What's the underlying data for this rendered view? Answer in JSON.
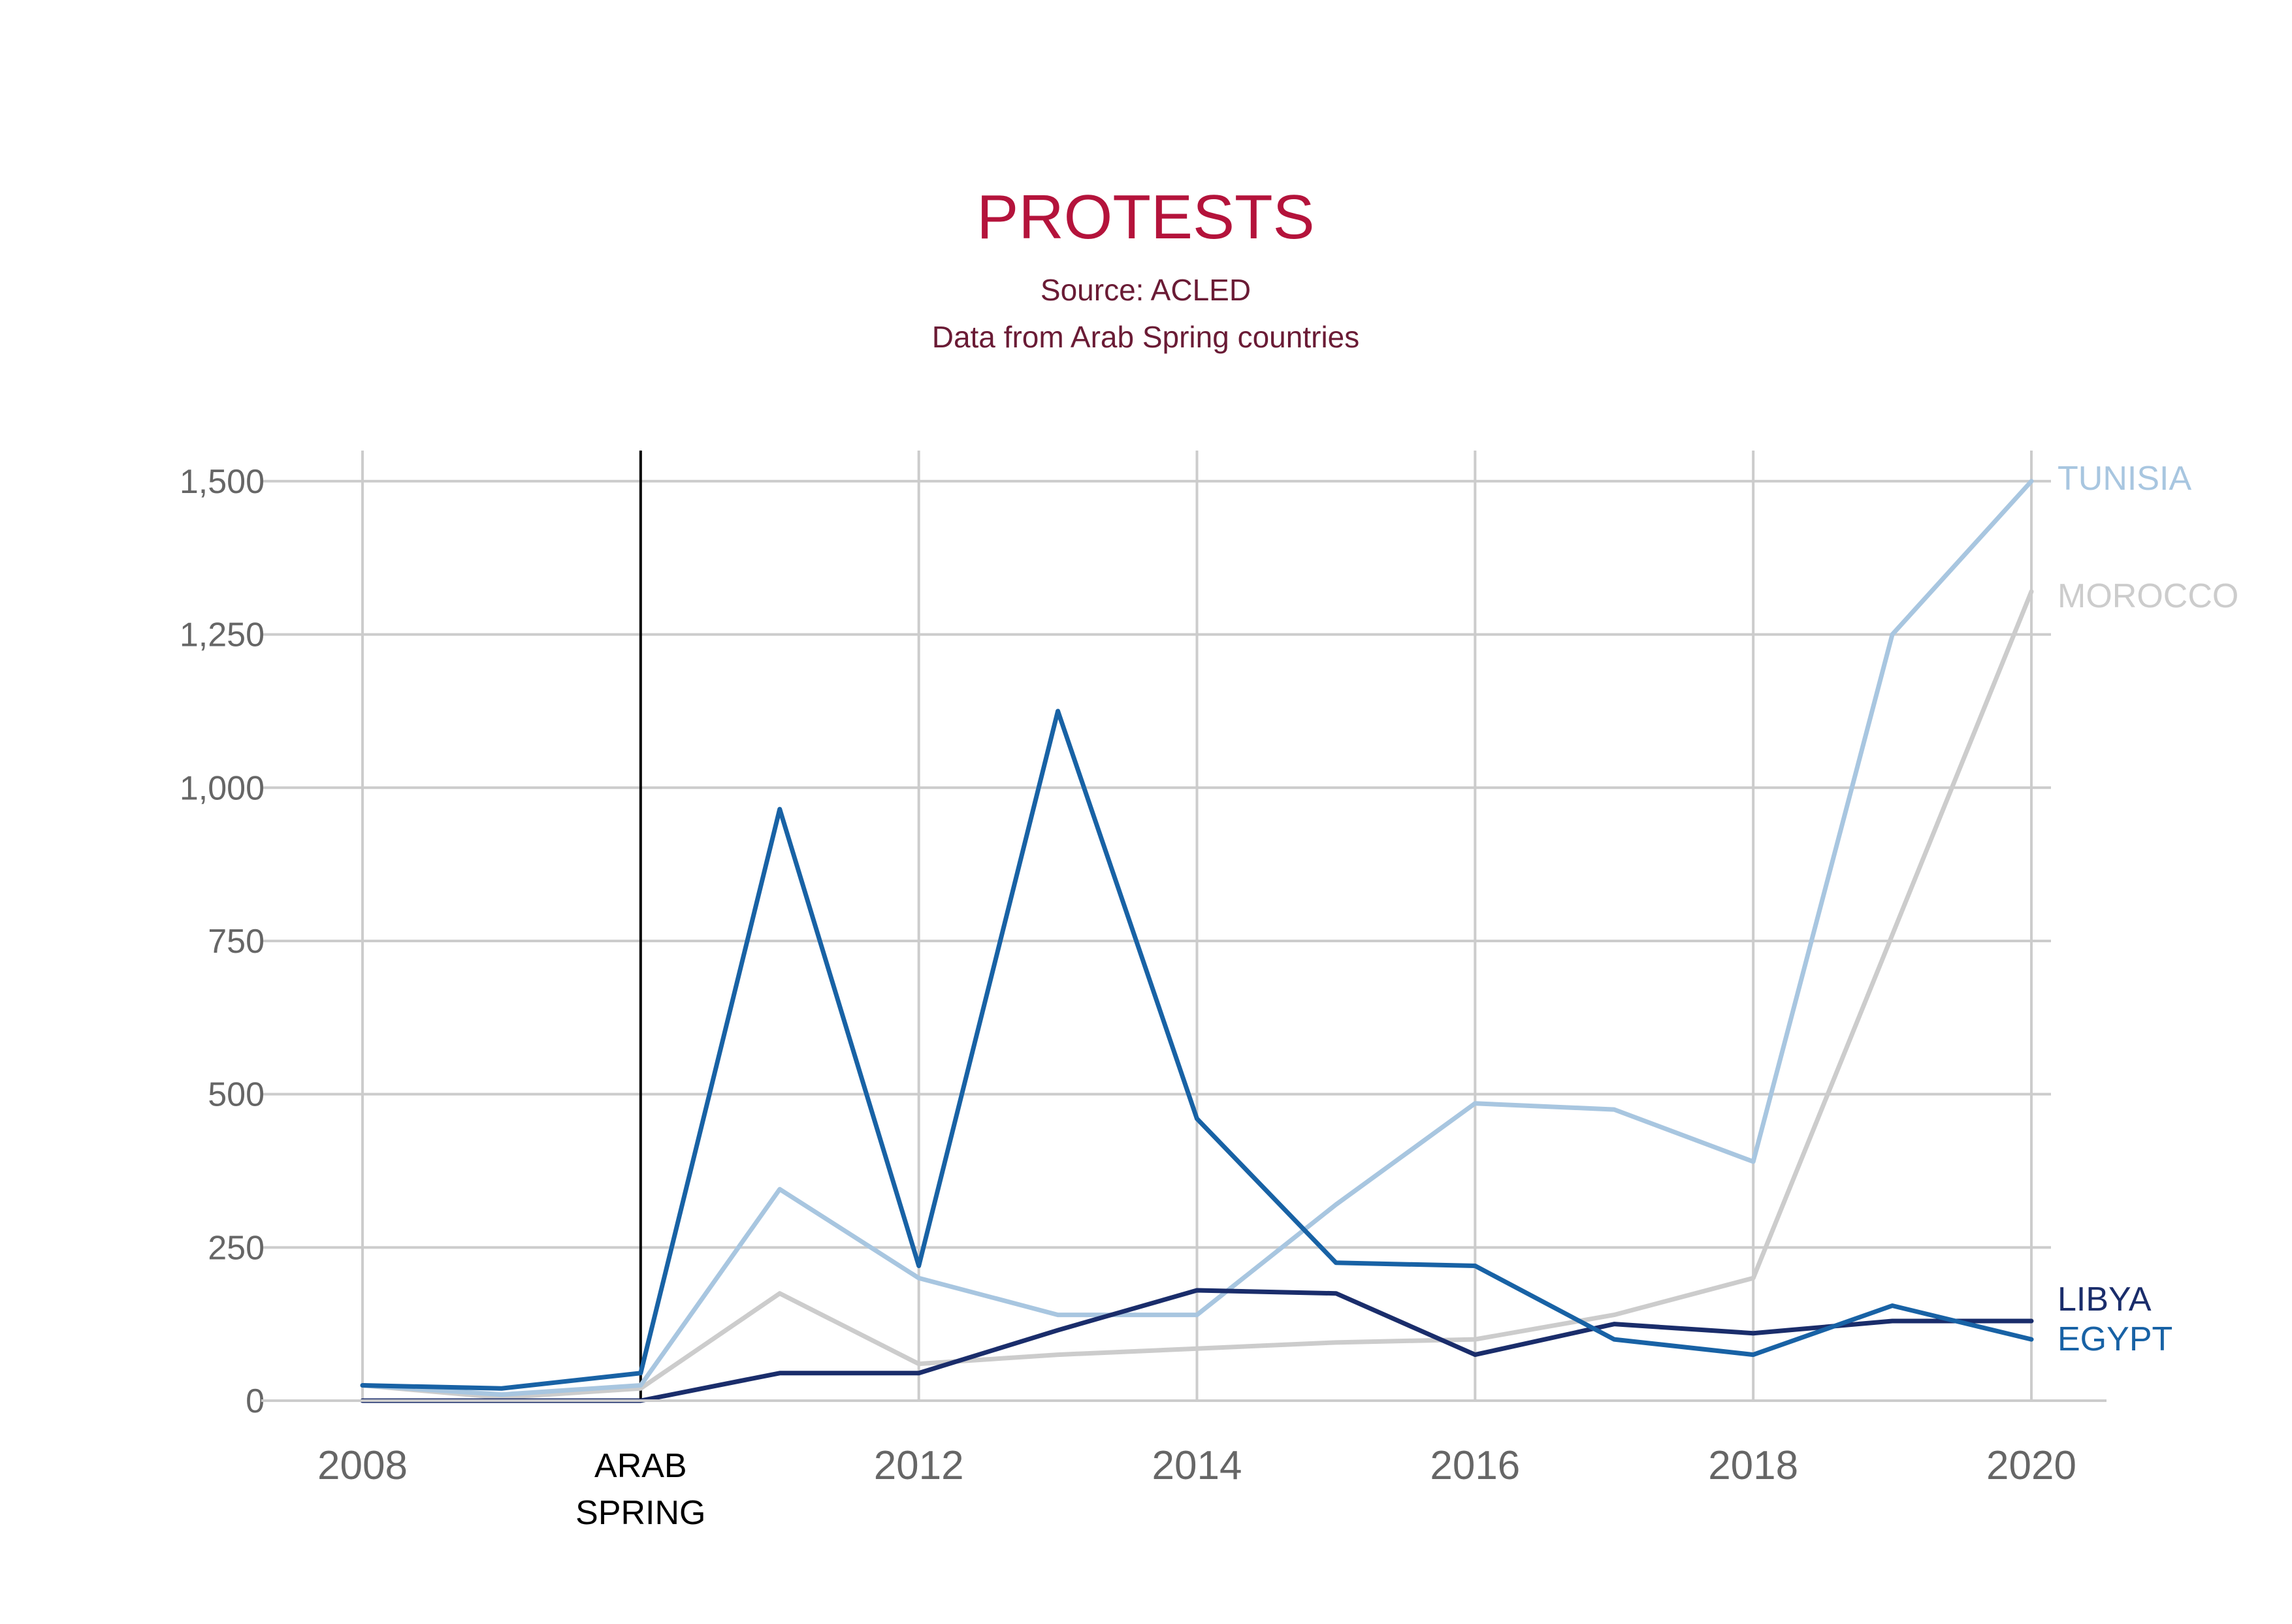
{
  "chart_data": {
    "type": "line",
    "title": "PROTESTS",
    "subtitle_lines": [
      "Source: ACLED",
      "Data from Arab Spring countries"
    ],
    "xlim": [
      2008,
      2020
    ],
    "ylim": [
      0,
      1550
    ],
    "yticks": [
      0,
      250,
      500,
      750,
      1000,
      1250,
      1500
    ],
    "ytick_labels": [
      "0",
      "250",
      "500",
      "750",
      "1,000",
      "1,250",
      "1,500"
    ],
    "xticks": [
      2008,
      2012,
      2014,
      2016,
      2018,
      2020
    ],
    "xtick_labels": [
      "2008",
      "2012",
      "2014",
      "2016",
      "2018",
      "2020"
    ],
    "grid": true,
    "x": [
      2008,
      2009,
      2010,
      2011,
      2012,
      2013,
      2014,
      2015,
      2016,
      2017,
      2018,
      2019,
      2020
    ],
    "annotations": [
      {
        "x": 2010,
        "lines": [
          "ARAB",
          "SPRING"
        ],
        "color": "#000000"
      }
    ],
    "series": [
      {
        "name": "MOROCCO",
        "color": "#cccccc",
        "values": [
          25,
          5,
          20,
          175,
          60,
          75,
          85,
          95,
          100,
          140,
          200,
          760,
          1320
        ]
      },
      {
        "name": "TUNISIA",
        "color": "#a8c6e0",
        "values": [
          25,
          10,
          25,
          345,
          200,
          140,
          140,
          320,
          485,
          475,
          390,
          1250,
          1500
        ]
      },
      {
        "name": "LIBYA",
        "color": "#1a2d6b",
        "values": [
          0,
          0,
          0,
          45,
          45,
          115,
          180,
          175,
          75,
          125,
          110,
          130,
          130
        ]
      },
      {
        "name": "EGYPT",
        "color": "#1862a5",
        "values": [
          25,
          20,
          45,
          965,
          220,
          1125,
          460,
          225,
          220,
          100,
          75,
          155,
          100
        ]
      }
    ]
  }
}
